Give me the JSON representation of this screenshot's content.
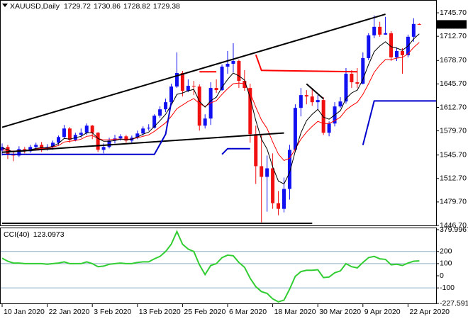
{
  "chart_data": [
    {
      "type": "candlestick",
      "title": "XAUUSD,Daily",
      "categories": [
        "10 Jan 2020",
        null,
        null,
        null,
        null,
        null,
        null,
        null,
        "22 Jan 2020",
        null,
        null,
        null,
        null,
        null,
        null,
        null,
        "3 Feb 2020",
        null,
        null,
        null,
        null,
        null,
        null,
        null,
        "13 Feb 2020",
        null,
        null,
        null,
        null,
        null,
        null,
        null,
        "25 Feb 2020",
        null,
        null,
        null,
        null,
        null,
        null,
        null,
        "6 Mar 2020",
        null,
        null,
        null,
        null,
        null,
        null,
        null,
        "18 Mar 2020",
        null,
        null,
        null,
        null,
        null,
        null,
        null,
        "30 Mar 2020",
        null,
        null,
        null,
        null,
        null,
        null,
        null,
        "9 Apr 2020",
        null,
        null,
        null,
        null,
        null,
        null,
        null,
        "22 Apr 2020",
        null,
        null
      ],
      "open": [
        1552,
        1557,
        1546,
        1545,
        1554,
        1551,
        1557,
        1560,
        1556,
        1557,
        1563,
        1571,
        1583,
        1567,
        1574,
        1577,
        1587,
        1577,
        1553,
        1557,
        1566,
        1569,
        1572,
        1566,
        1570,
        1576,
        1583,
        1584,
        1601,
        1610,
        1620,
        1642,
        1661,
        1636,
        1643,
        1642,
        1587,
        1597,
        1640,
        1637,
        1670,
        1674,
        1678,
        1650,
        1640,
        1575,
        1530,
        1515,
        1527,
        1478,
        1470,
        1498,
        1553,
        1612,
        1630,
        1628,
        1620,
        1623,
        1577,
        1590,
        1614,
        1621,
        1660,
        1648,
        1646,
        1682,
        1714,
        1726,
        1715,
        1717,
        1683,
        1692,
        1686,
        1712,
        1729.72
      ],
      "high": [
        1562,
        1560,
        1552,
        1558,
        1557,
        1560,
        1563,
        1564,
        1561,
        1566,
        1573,
        1588,
        1585,
        1577,
        1583,
        1590,
        1588,
        1578,
        1562,
        1570,
        1574,
        1575,
        1574,
        1573,
        1580,
        1586,
        1589,
        1603,
        1614,
        1625,
        1646,
        1690,
        1664,
        1652,
        1650,
        1645,
        1603,
        1648,
        1652,
        1673,
        1692,
        1703,
        1680,
        1665,
        1646,
        1587,
        1575,
        1545,
        1548,
        1495,
        1514,
        1560,
        1617,
        1640,
        1637,
        1640,
        1630,
        1627,
        1593,
        1620,
        1627,
        1668,
        1665,
        1668,
        1690,
        1717,
        1742,
        1733,
        1740,
        1720,
        1697,
        1696,
        1715,
        1738,
        1730.86
      ],
      "low": [
        1545,
        1540,
        1537,
        1543,
        1548,
        1549,
        1554,
        1550,
        1552,
        1553,
        1560,
        1569,
        1563,
        1565,
        1570,
        1574,
        1568,
        1550,
        1548,
        1555,
        1562,
        1566,
        1563,
        1563,
        1568,
        1573,
        1580,
        1583,
        1598,
        1606,
        1617,
        1640,
        1628,
        1634,
        1630,
        1580,
        1583,
        1588,
        1633,
        1636,
        1660,
        1662,
        1640,
        1636,
        1563,
        1505,
        1451,
        1466,
        1470,
        1461,
        1465,
        1483,
        1550,
        1600,
        1617,
        1615,
        1610,
        1574,
        1572,
        1586,
        1612,
        1618,
        1640,
        1640,
        1645,
        1679,
        1710,
        1712,
        1715,
        1678,
        1678,
        1660,
        1683,
        1705,
        1728.82
      ],
      "close": [
        1557,
        1546,
        1545,
        1554,
        1551,
        1557,
        1560,
        1556,
        1557,
        1563,
        1571,
        1583,
        1567,
        1574,
        1577,
        1587,
        1577,
        1553,
        1557,
        1566,
        1569,
        1572,
        1566,
        1570,
        1576,
        1583,
        1584,
        1601,
        1610,
        1620,
        1642,
        1661,
        1636,
        1643,
        1642,
        1587,
        1597,
        1640,
        1637,
        1670,
        1674,
        1678,
        1650,
        1640,
        1575,
        1530,
        1515,
        1527,
        1478,
        1470,
        1498,
        1553,
        1612,
        1630,
        1628,
        1620,
        1623,
        1577,
        1590,
        1614,
        1621,
        1660,
        1648,
        1646,
        1682,
        1714,
        1726,
        1715,
        1717,
        1683,
        1692,
        1686,
        1712,
        1730,
        1729.38
      ],
      "up_color": "#1010f0",
      "down_color": "#f01010",
      "overlays": [
        {
          "color": "#ff0000",
          "values": [
            1553,
            1552,
            1551,
            1552,
            1552,
            1553,
            1554,
            1555,
            1555,
            1557,
            1559,
            1564,
            1565,
            1566,
            1568,
            1572,
            1573,
            1569,
            1567,
            1567,
            1568,
            1568,
            1568,
            1568,
            1570,
            1572,
            1574,
            1579,
            1585,
            1591,
            1600,
            1611,
            1616,
            1621,
            1625,
            1618,
            1614,
            1619,
            1622,
            1631,
            1639,
            1646,
            1647,
            1646,
            1633,
            1613,
            1595,
            1583,
            1564,
            1547,
            1538,
            1541,
            1554,
            1568,
            1578,
            1586,
            1593,
            1590,
            1590,
            1594,
            1599,
            1609,
            1615,
            1620,
            1631,
            1646,
            1662,
            1672,
            1680,
            1680,
            1682,
            1683,
            1688,
            1697,
            1704
          ]
        },
        {
          "color": "#000000",
          "values": [
            1556,
            1553,
            1550,
            1551,
            1551,
            1553,
            1555,
            1556,
            1556,
            1558,
            1562,
            1569,
            1568,
            1570,
            1572,
            1577,
            1577,
            1569,
            1565,
            1565,
            1566,
            1568,
            1567,
            1568,
            1571,
            1575,
            1578,
            1586,
            1594,
            1603,
            1616,
            1631,
            1633,
            1636,
            1638,
            1621,
            1613,
            1622,
            1627,
            1641,
            1652,
            1661,
            1657,
            1651,
            1626,
            1594,
            1568,
            1554,
            1529,
            1509,
            1505,
            1521,
            1551,
            1577,
            1594,
            1603,
            1610,
            1599,
            1596,
            1602,
            1608,
            1625,
            1633,
            1637,
            1652,
            1673,
            1691,
            1699,
            1705,
            1698,
            1696,
            1693,
            1699,
            1709,
            1716
          ]
        }
      ],
      "drawings": [
        {
          "color": "#000000",
          "x": [
            0,
            68
          ],
          "y": [
            1584.7,
            1743.7
          ]
        },
        {
          "color": "#000000",
          "x": [
            0,
            50
          ],
          "y": [
            1549.7,
            1576.7
          ]
        },
        {
          "color": "#000000",
          "x": [
            0,
            55
          ],
          "y": [
            1449.7,
            1449.7
          ]
        },
        {
          "color": "#000000",
          "x": [
            54,
            57
          ],
          "y": [
            1645.7,
            1624.7
          ]
        },
        {
          "color": "#ff0000",
          "x": [
            35,
            38
          ],
          "y": [
            1662.7,
            1662.7
          ]
        },
        {
          "color": "#ff0000",
          "x": [
            45,
            46,
            63
          ],
          "y": [
            1686.7,
            1664.7,
            1662.7
          ]
        },
        {
          "color": "#0000cc",
          "x": [
            0,
            27,
            29,
            30
          ],
          "y": [
            1546.7,
            1546.7,
            1575,
            1620
          ]
        },
        {
          "color": "#0000cc",
          "x": [
            39,
            40,
            44
          ],
          "y": [
            1546.7,
            1554.7,
            1554.7
          ]
        },
        {
          "color": "#0000cc",
          "x": [
            64,
            66,
            78
          ],
          "y": [
            1559.7,
            1621.7,
            1621.7
          ]
        }
      ],
      "ylim": [
        1446.7,
        1762.7
      ],
      "yticks": [
        {
          "value": 1745.7,
          "label": "1745.70"
        },
        {
          "value": 1712.7,
          "label": "1712.70"
        },
        {
          "value": 1678.7,
          "label": "1678.70"
        },
        {
          "value": 1645.7,
          "label": "1645.70"
        },
        {
          "value": 1612.7,
          "label": "1612.70"
        },
        {
          "value": 1579.7,
          "label": "1579.70"
        },
        {
          "value": 1545.7,
          "label": "1545.70"
        },
        {
          "value": 1512.7,
          "label": "1512.70"
        },
        {
          "value": 1479.7,
          "label": "1479.70"
        },
        {
          "value": 1446.7,
          "label": "1446.70"
        }
      ]
    },
    {
      "type": "line",
      "title": "CCI(40)",
      "color": "#32cd32",
      "values": [
        145,
        120,
        105,
        105,
        100,
        100,
        100,
        100,
        95,
        100,
        105,
        115,
        100,
        100,
        100,
        115,
        100,
        75,
        80,
        95,
        100,
        105,
        100,
        100,
        110,
        115,
        115,
        140,
        160,
        200,
        260,
        365,
        260,
        220,
        200,
        90,
        10,
        85,
        100,
        150,
        170,
        165,
        110,
        70,
        -20,
        -90,
        -130,
        -145,
        -190,
        -215,
        -200,
        -110,
        -5,
        35,
        45,
        45,
        50,
        -15,
        -10,
        25,
        40,
        100,
        75,
        65,
        110,
        150,
        160,
        140,
        135,
        90,
        95,
        85,
        105,
        120,
        123.0973
      ],
      "ylim": [
        -227.591,
        379.9967
      ],
      "yticks": [
        379.9967,
        200,
        100,
        0,
        -100,
        -227.591
      ],
      "levels": [
        200,
        100,
        -100
      ],
      "level_color": "#8fb0c8"
    }
  ]
}
